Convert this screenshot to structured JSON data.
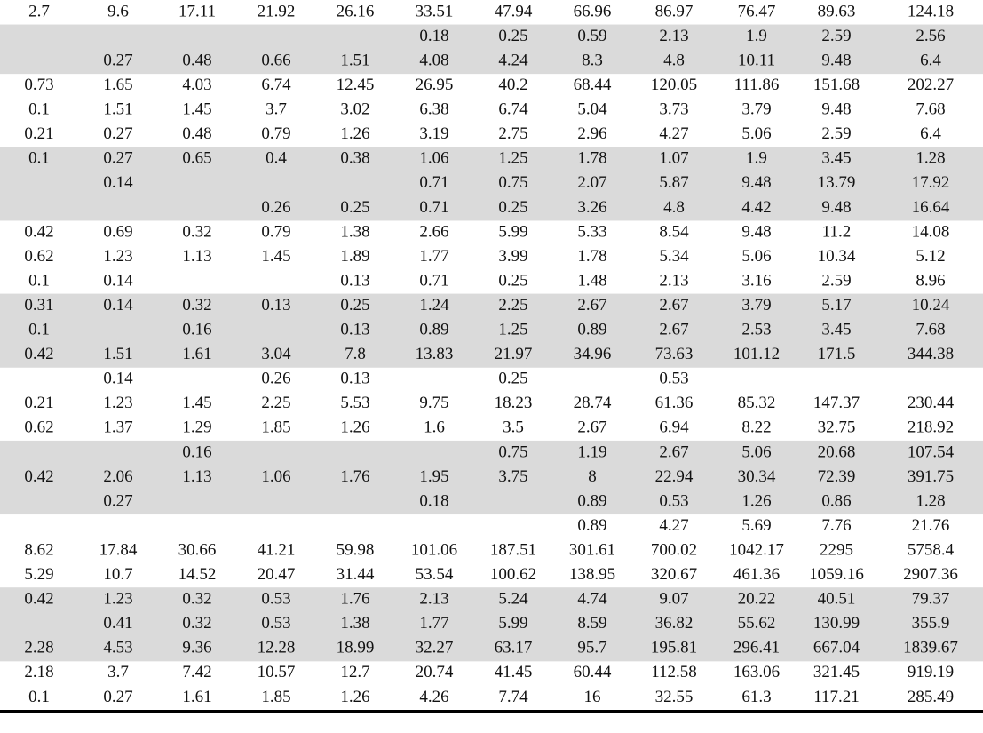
{
  "table": {
    "rows": [
      [
        2.7,
        9.6,
        17.11,
        21.92,
        26.16,
        33.51,
        47.94,
        66.96,
        86.97,
        76.47,
        89.63,
        124.18
      ],
      [
        null,
        null,
        null,
        null,
        null,
        0.18,
        0.25,
        0.59,
        2.13,
        1.9,
        2.59,
        2.56
      ],
      [
        null,
        0.27,
        0.48,
        0.66,
        1.51,
        4.08,
        4.24,
        8.3,
        4.8,
        10.11,
        9.48,
        6.4
      ],
      [
        0.73,
        1.65,
        4.03,
        6.74,
        12.45,
        26.95,
        40.2,
        68.44,
        120.05,
        111.86,
        151.68,
        202.27
      ],
      [
        0.1,
        1.51,
        1.45,
        3.7,
        3.02,
        6.38,
        6.74,
        5.04,
        3.73,
        3.79,
        9.48,
        7.68
      ],
      [
        0.21,
        0.27,
        0.48,
        0.79,
        1.26,
        3.19,
        2.75,
        2.96,
        4.27,
        5.06,
        2.59,
        6.4
      ],
      [
        0.1,
        0.27,
        0.65,
        0.4,
        0.38,
        1.06,
        1.25,
        1.78,
        1.07,
        1.9,
        3.45,
        1.28
      ],
      [
        null,
        0.14,
        null,
        null,
        null,
        0.71,
        0.75,
        2.07,
        5.87,
        9.48,
        13.79,
        17.92
      ],
      [
        null,
        null,
        null,
        0.26,
        0.25,
        0.71,
        0.25,
        3.26,
        4.8,
        4.42,
        9.48,
        16.64
      ],
      [
        0.42,
        0.69,
        0.32,
        0.79,
        1.38,
        2.66,
        5.99,
        5.33,
        8.54,
        9.48,
        11.2,
        14.08
      ],
      [
        0.62,
        1.23,
        1.13,
        1.45,
        1.89,
        1.77,
        3.99,
        1.78,
        5.34,
        5.06,
        10.34,
        5.12
      ],
      [
        0.1,
        0.14,
        null,
        null,
        0.13,
        0.71,
        0.25,
        1.48,
        2.13,
        3.16,
        2.59,
        8.96
      ],
      [
        0.31,
        0.14,
        0.32,
        0.13,
        0.25,
        1.24,
        2.25,
        2.67,
        2.67,
        3.79,
        5.17,
        10.24
      ],
      [
        0.1,
        null,
        0.16,
        null,
        0.13,
        0.89,
        1.25,
        0.89,
        2.67,
        2.53,
        3.45,
        7.68
      ],
      [
        0.42,
        1.51,
        1.61,
        3.04,
        7.8,
        13.83,
        21.97,
        34.96,
        73.63,
        101.12,
        171.5,
        344.38
      ],
      [
        null,
        0.14,
        null,
        0.26,
        0.13,
        null,
        0.25,
        null,
        0.53,
        null,
        null,
        null
      ],
      [
        0.21,
        1.23,
        1.45,
        2.25,
        5.53,
        9.75,
        18.23,
        28.74,
        61.36,
        85.32,
        147.37,
        230.44
      ],
      [
        0.62,
        1.37,
        1.29,
        1.85,
        1.26,
        1.6,
        3.5,
        2.67,
        6.94,
        8.22,
        32.75,
        218.92
      ],
      [
        null,
        null,
        0.16,
        null,
        null,
        null,
        0.75,
        1.19,
        2.67,
        5.06,
        20.68,
        107.54
      ],
      [
        0.42,
        2.06,
        1.13,
        1.06,
        1.76,
        1.95,
        3.75,
        8,
        22.94,
        30.34,
        72.39,
        391.75
      ],
      [
        null,
        0.27,
        null,
        null,
        null,
        0.18,
        null,
        0.89,
        0.53,
        1.26,
        0.86,
        1.28
      ],
      [
        null,
        null,
        null,
        null,
        null,
        null,
        null,
        0.89,
        4.27,
        5.69,
        7.76,
        21.76
      ],
      [
        8.62,
        17.84,
        30.66,
        41.21,
        59.98,
        101.06,
        187.51,
        301.61,
        700.02,
        1042.17,
        2295,
        5758.4
      ],
      [
        5.29,
        10.7,
        14.52,
        20.47,
        31.44,
        53.54,
        100.62,
        138.95,
        320.67,
        461.36,
        1059.16,
        2907.36
      ],
      [
        0.42,
        1.23,
        0.32,
        0.53,
        1.76,
        2.13,
        5.24,
        4.74,
        9.07,
        20.22,
        40.51,
        79.37
      ],
      [
        null,
        0.41,
        0.32,
        0.53,
        1.38,
        1.77,
        5.99,
        8.59,
        36.82,
        55.62,
        130.99,
        355.9
      ],
      [
        2.28,
        4.53,
        9.36,
        12.28,
        18.99,
        32.27,
        63.17,
        95.7,
        195.81,
        296.41,
        667.04,
        1839.67
      ],
      [
        2.18,
        3.7,
        7.42,
        10.57,
        12.7,
        20.74,
        41.45,
        60.44,
        112.58,
        163.06,
        321.45,
        919.19
      ],
      [
        0.1,
        0.27,
        1.61,
        1.85,
        1.26,
        4.26,
        7.74,
        16,
        32.55,
        61.3,
        117.21,
        285.49
      ]
    ]
  }
}
